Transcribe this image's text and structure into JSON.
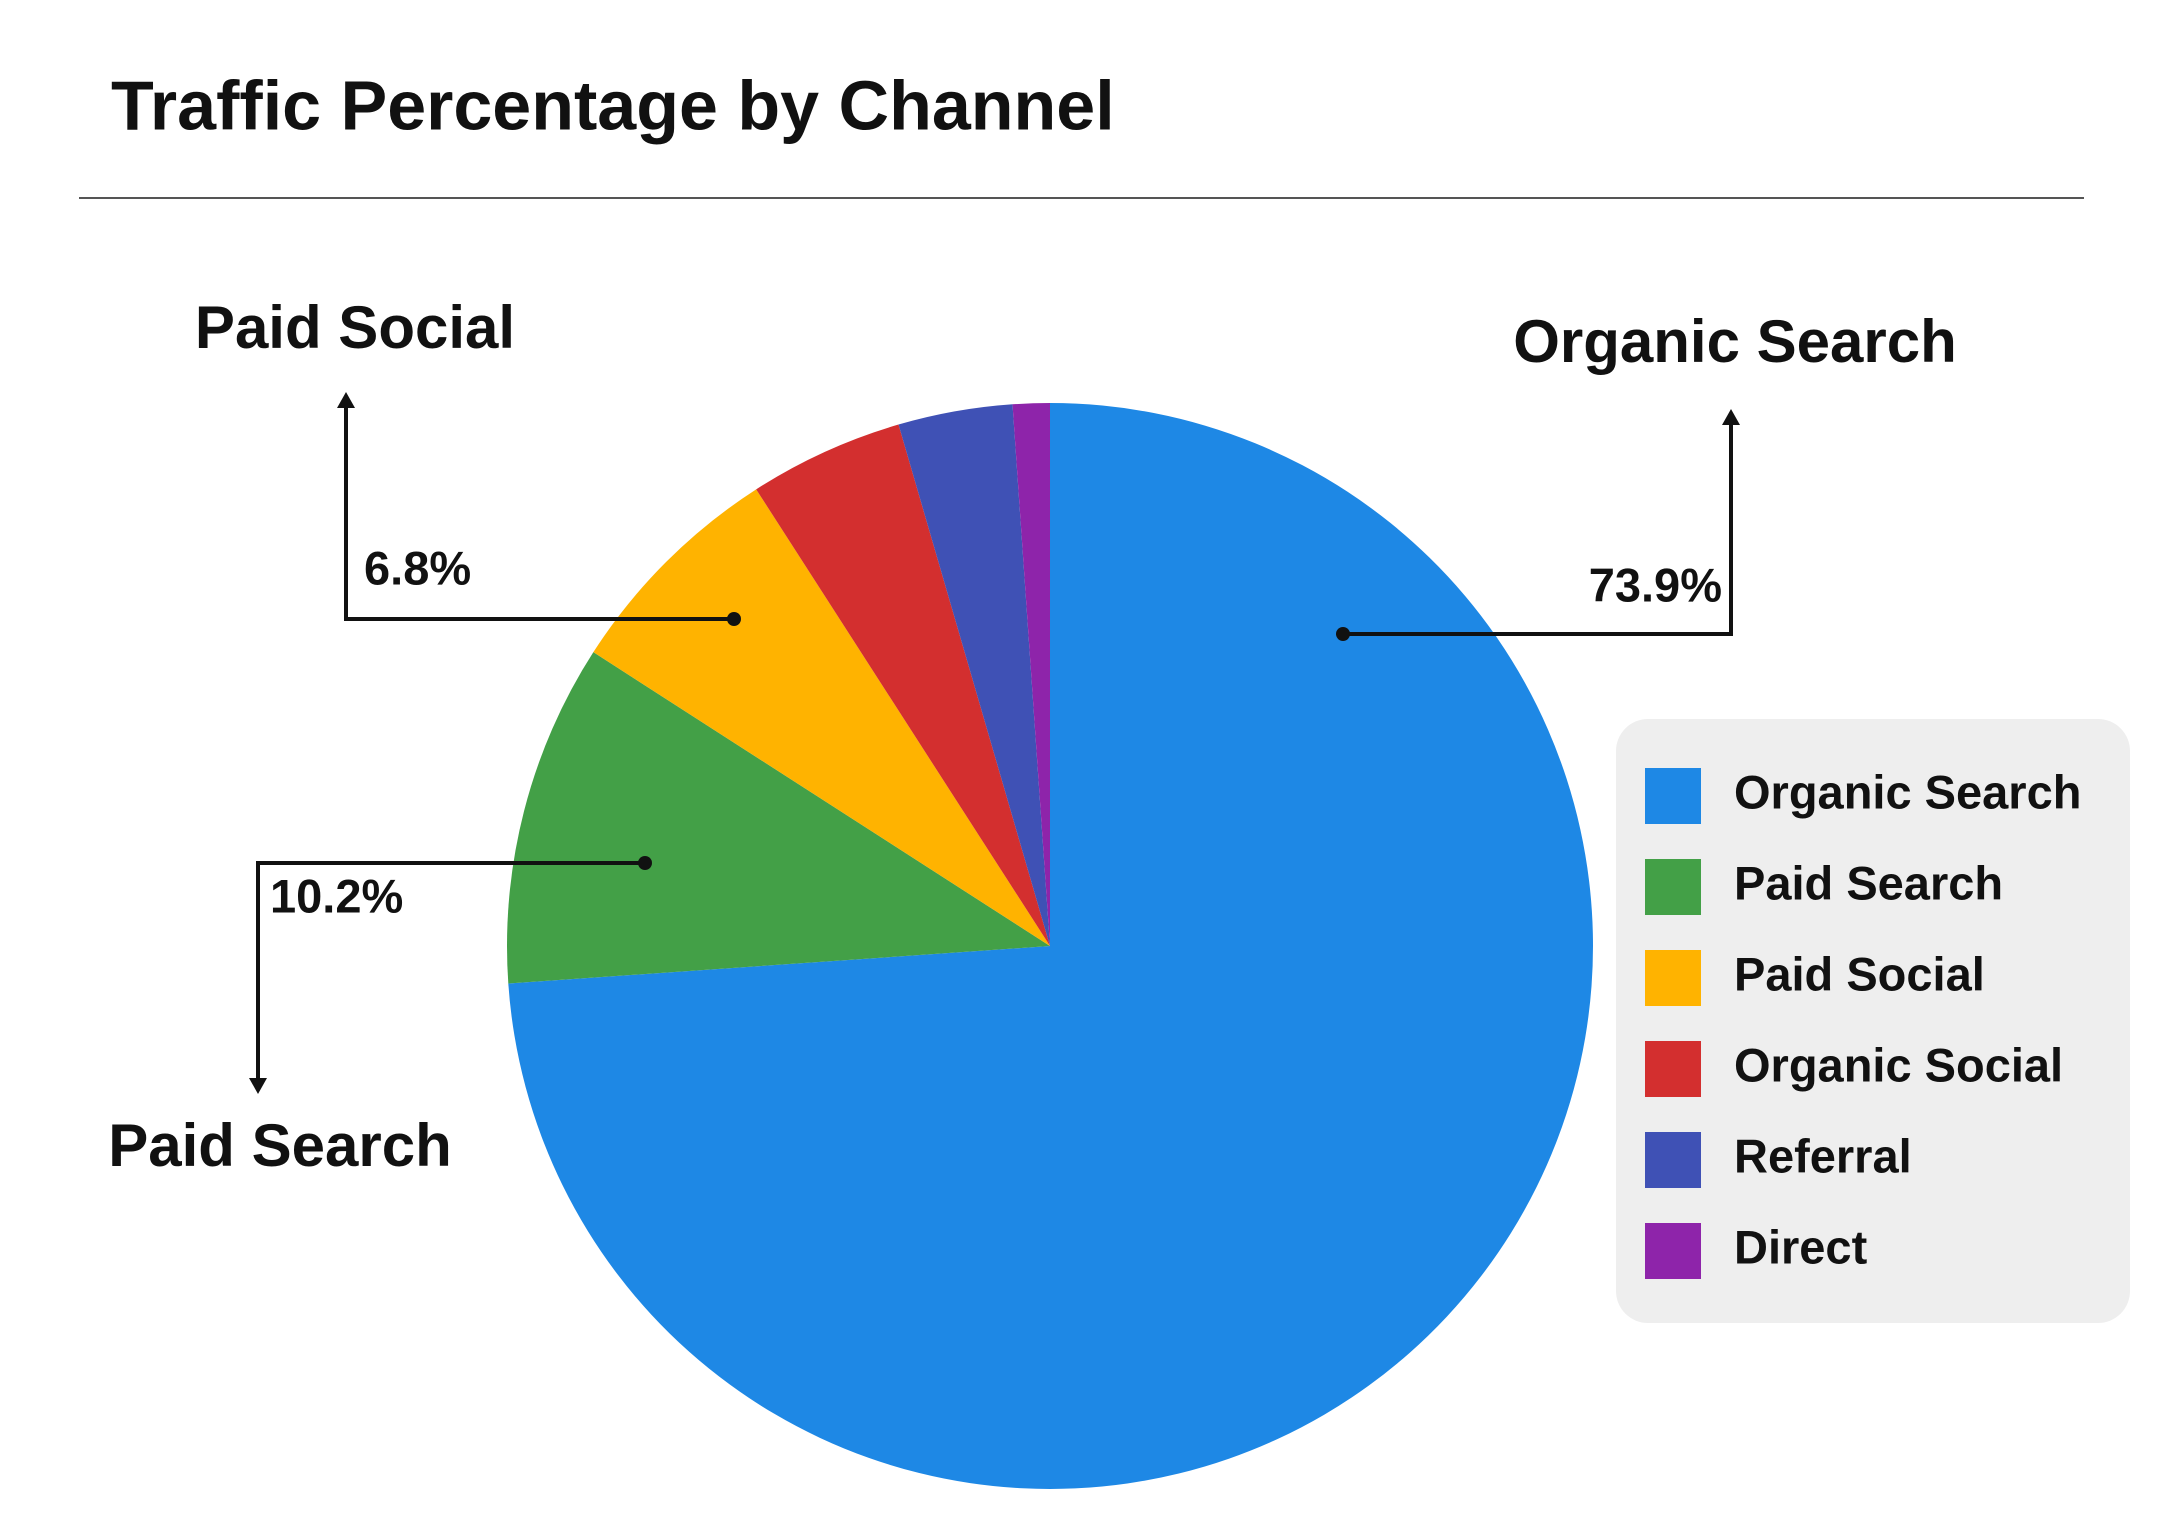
{
  "chart_data": {
    "type": "pie",
    "title": "Traffic Percentage by Channel",
    "categories": [
      "Organic Search",
      "Paid Search",
      "Paid Social",
      "Organic Social",
      "Referral",
      "Direct"
    ],
    "values": [
      73.9,
      10.2,
      6.8,
      4.6,
      3.4,
      1.1
    ],
    "value_labels": [
      "73.9%",
      "10.2%",
      "6.8%",
      null,
      null,
      null
    ],
    "colors": [
      "#1e88e5",
      "#43a047",
      "#ffb300",
      "#d32f2f",
      "#3f51b5",
      "#8e24aa"
    ],
    "legend": "right"
  }
}
